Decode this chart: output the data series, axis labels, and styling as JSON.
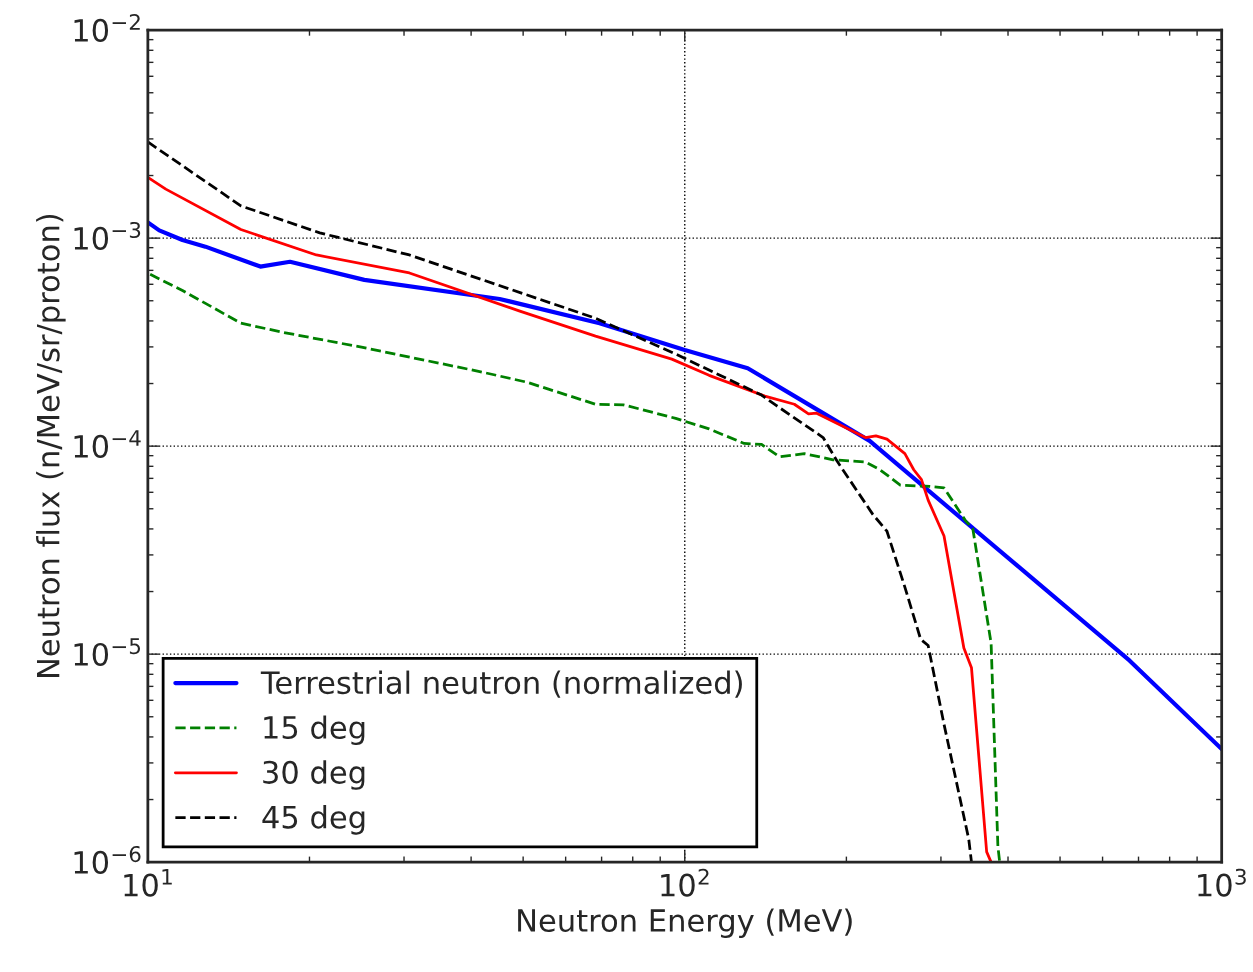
{
  "chart_data": {
    "type": "line",
    "xlabel": "Neutron Energy (MeV)",
    "ylabel": "Neutron flux (n/MeV/sr/proton)",
    "log": "xy",
    "xlim": [
      10,
      1000
    ],
    "ylim": [
      1e-06,
      0.01
    ],
    "xticks": [
      {
        "value": 10,
        "label": "10$^{1}$"
      },
      {
        "value": 100,
        "label": "10$^{2}$"
      },
      {
        "value": 1000,
        "label": "10$^{3}$"
      }
    ],
    "yticks": [
      {
        "value": 1e-06,
        "label": "10$^{−6}$"
      },
      {
        "value": 1e-05,
        "label": "10$^{−5}$"
      },
      {
        "value": 0.0001,
        "label": "10$^{−4}$"
      },
      {
        "value": 0.001,
        "label": "10$^{−3}$"
      },
      {
        "value": 0.01,
        "label": "10$^{−2}$"
      }
    ],
    "grid": true,
    "legend": "bottom left",
    "series": [
      {
        "name": "Terrestrial neutron (normalized)",
        "color": "#0000ff",
        "line_style": "solid",
        "x": [
          10,
          10.5,
          11.6,
          12.8,
          16.2,
          18.4,
          25.3,
          45.2,
          69.4,
          100,
          131,
          221,
          674,
          1000
        ],
        "values": [
          0.00119,
          0.00109,
          0.00098,
          0.00091,
          0.00073,
          0.00077,
          0.00063,
          0.00051,
          0.00039,
          0.00029,
          0.000237,
          0.000106,
          9.3e-06,
          3.5e-06
        ]
      },
      {
        "name": "15 deg",
        "color": "#008000",
        "line_style": "dashed",
        "x": [
          10.1,
          11.6,
          14.9,
          17.8,
          25,
          41.3,
          50.8,
          68.2,
          76.9,
          96.2,
          111,
          129,
          139,
          150,
          167,
          189,
          217,
          231,
          252,
          286,
          304,
          333,
          344,
          372,
          383,
          386
        ],
        "values": [
          0.00067,
          0.00056,
          0.00039,
          0.000353,
          0.000299,
          0.000229,
          0.000203,
          0.000159,
          0.000158,
          0.000136,
          0.000121,
          0.000103,
          0.000102,
          8.9e-05,
          9.2e-05,
          8.6e-05,
          8.4e-05,
          7.7e-05,
          6.5e-05,
          6.4e-05,
          6.3e-05,
          4.4e-05,
          4e-05,
          1.13e-05,
          1.19e-06,
          1e-06
        ]
      },
      {
        "name": "30 deg",
        "color": "#ff0000",
        "line_style": "solid",
        "x": [
          10,
          10.8,
          14.9,
          20.6,
          30.7,
          49.3,
          68.2,
          94.6,
          111,
          141,
          160,
          170,
          176,
          217,
          227,
          238,
          257,
          267,
          276,
          284,
          304,
          331,
          342,
          365,
          372
        ],
        "values": [
          0.00196,
          0.00172,
          0.0011,
          0.00083,
          0.00068,
          0.000446,
          0.000338,
          0.000262,
          0.000219,
          0.000174,
          0.000159,
          0.000143,
          0.000144,
          0.00011,
          0.000112,
          0.000108,
          9.2e-05,
          7.7e-05,
          6.9e-05,
          5.5e-05,
          3.7e-05,
          1.07e-05,
          8.6e-06,
          1.12e-06,
          1e-06
        ]
      },
      {
        "name": "45 deg",
        "color": "#000000",
        "line_style": "dashed",
        "x": [
          10,
          14.9,
          20.9,
          30.7,
          68.2,
          96.2,
          139,
          148,
          181,
          192,
          224,
          238,
          257,
          275,
          284,
          304,
          338,
          342
        ],
        "values": [
          0.0029,
          0.00143,
          0.00106,
          0.00083,
          0.000412,
          0.000277,
          0.000176,
          0.000157,
          0.00011,
          8.5e-05,
          4.7e-05,
          3.9e-05,
          2.1e-05,
          1.18e-05,
          1.1e-05,
          4.6e-06,
          1.29e-06,
          1e-06
        ]
      }
    ]
  }
}
